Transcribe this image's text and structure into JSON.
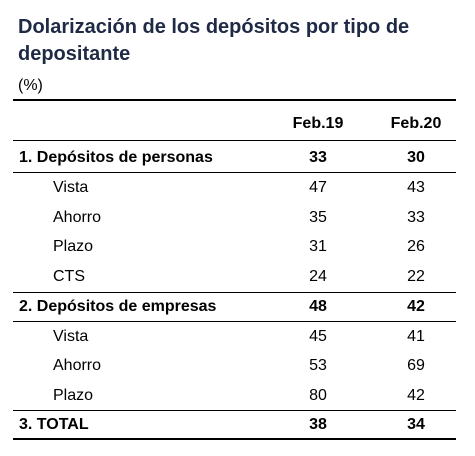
{
  "title": "Dolarización de los depósitos por tipo de depositante",
  "unit": "(%)",
  "columns": [
    "Feb.19",
    "Feb.20"
  ],
  "rows": [
    {
      "label": "1.  Depósitos de personas",
      "feb19": "33",
      "feb20": "30",
      "bold": true
    },
    {
      "label": "Vista",
      "feb19": "47",
      "feb20": "43",
      "bold": false
    },
    {
      "label": "Ahorro",
      "feb19": "35",
      "feb20": "33",
      "bold": false
    },
    {
      "label": "Plazo",
      "feb19": "31",
      "feb20": "26",
      "bold": false
    },
    {
      "label": "CTS",
      "feb19": "24",
      "feb20": "22",
      "bold": false
    },
    {
      "label": "2.  Depósitos de empresas",
      "feb19": "48",
      "feb20": "42",
      "bold": true
    },
    {
      "label": "Vista",
      "feb19": "45",
      "feb20": "41",
      "bold": false
    },
    {
      "label": "Ahorro",
      "feb19": "53",
      "feb20": "69",
      "bold": false
    },
    {
      "label": "Plazo",
      "feb19": "80",
      "feb20": "42",
      "bold": false
    },
    {
      "label": "3.  TOTAL",
      "feb19": "38",
      "feb20": "34",
      "bold": true
    }
  ]
}
